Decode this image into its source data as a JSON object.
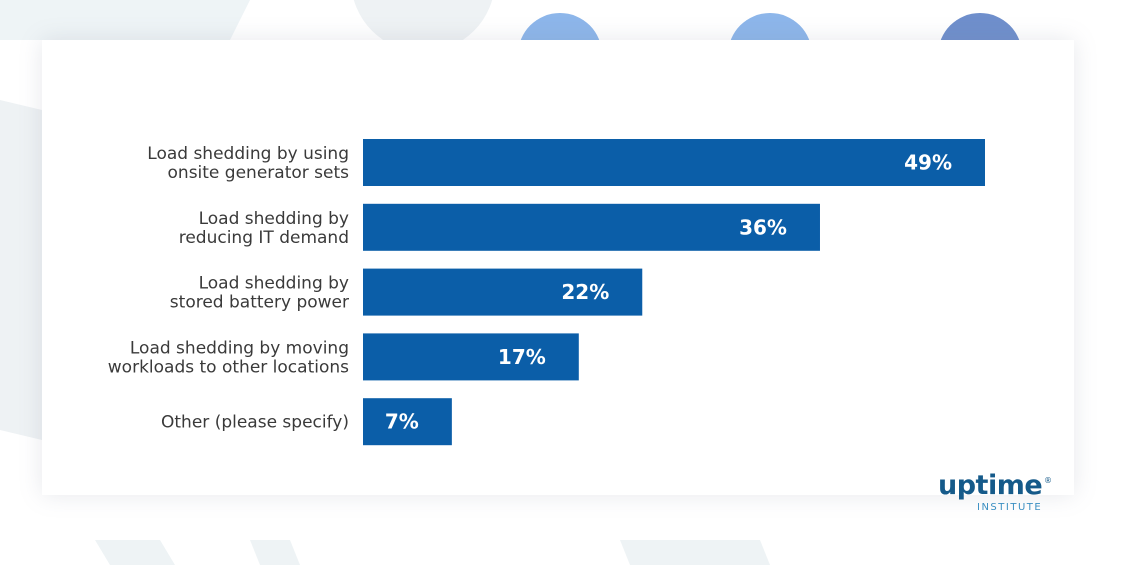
{
  "chart_data": {
    "type": "bar",
    "orientation": "horizontal",
    "categories": [
      [
        "Load shedding by using",
        "onsite generator sets"
      ],
      [
        "Load shedding by",
        "reducing IT demand"
      ],
      [
        "Load shedding by",
        "stored battery power"
      ],
      [
        "Load shedding by moving",
        "workloads to other locations"
      ],
      [
        "Other (please specify)"
      ]
    ],
    "values": [
      49,
      36,
      22,
      17,
      7
    ],
    "value_labels": [
      "49%",
      "36%",
      "22%",
      "17%",
      "7%"
    ],
    "unit": "%",
    "bar_color": "#0b5ea8",
    "value_label_color": "#ffffff",
    "xlim": [
      0,
      49
    ]
  },
  "logo": {
    "word": "uptime",
    "registered": "®",
    "sub": "INSTITUTE",
    "color": "#155a8a"
  },
  "colors": {
    "background": "#ffffff",
    "decor_light": "#eef3f6",
    "decor_blue": "#8db6ea",
    "decor_dark": "#6f8fcc"
  }
}
